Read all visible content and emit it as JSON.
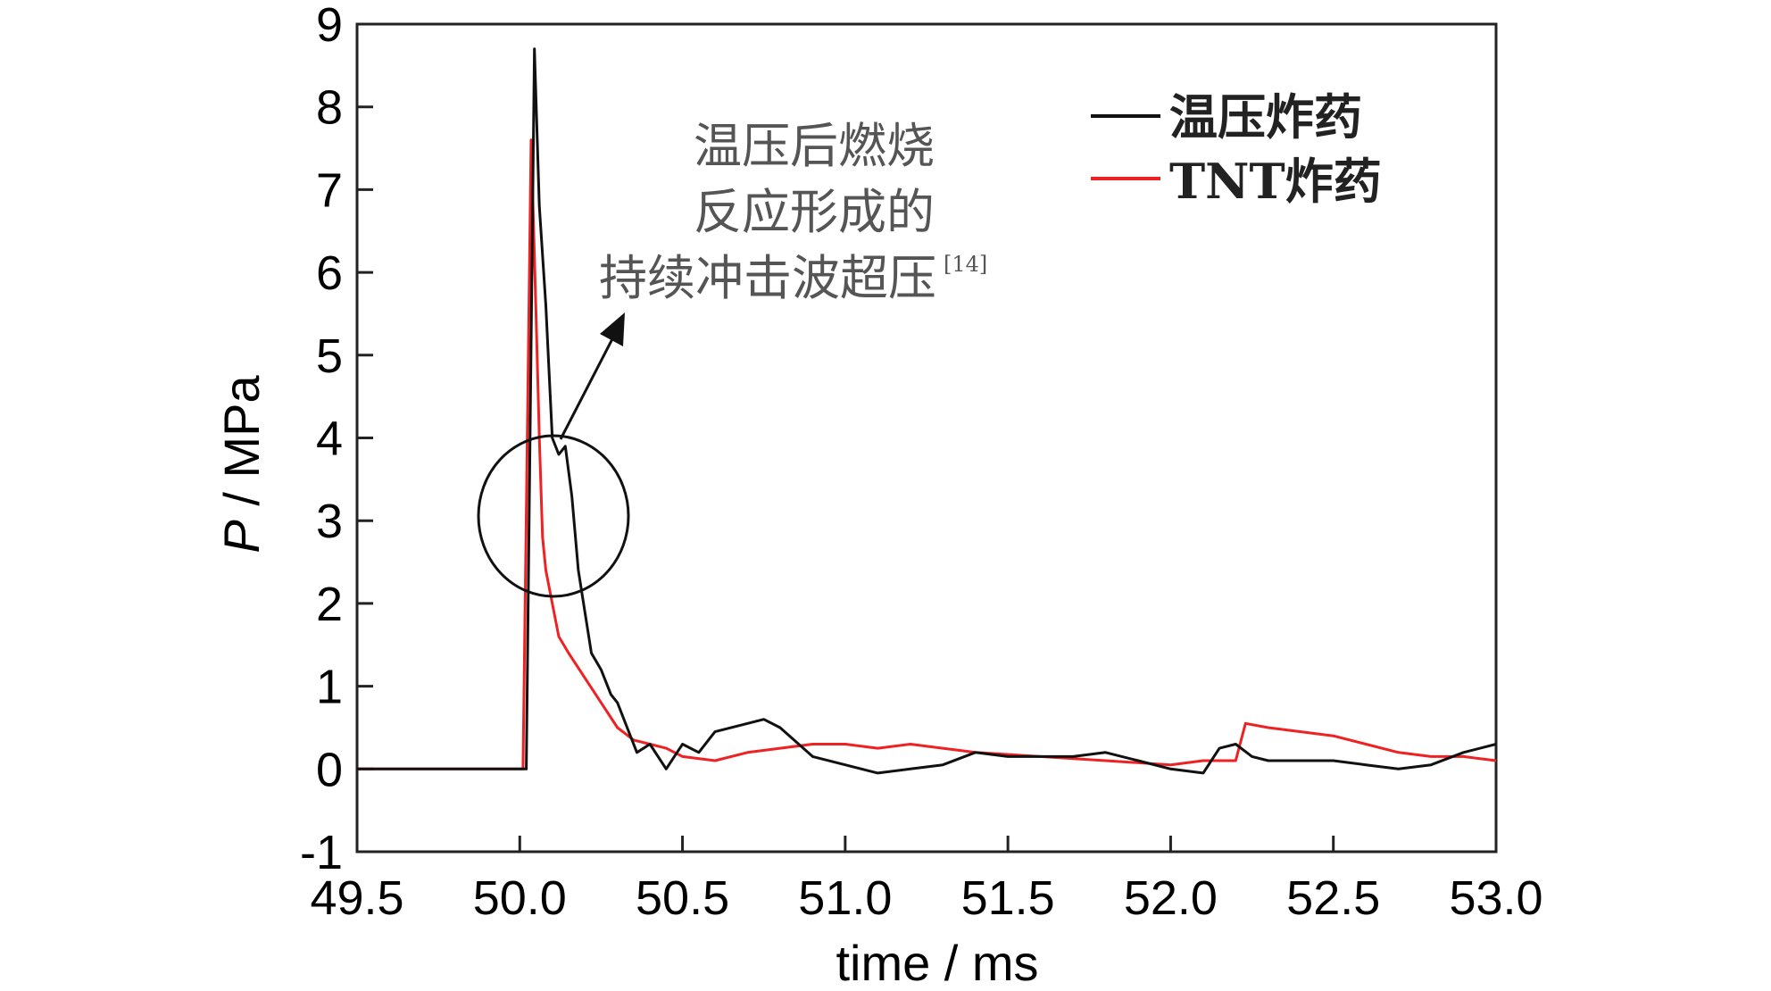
{
  "chart_data": {
    "type": "line",
    "xlabel": "time / ms",
    "ylabel_italic": "P",
    "ylabel_rest": " / MPa",
    "xlim": [
      49.5,
      53.0
    ],
    "ylim": [
      -1,
      9
    ],
    "x_ticks": [
      "49.5",
      "50.0",
      "50.5",
      "51.0",
      "51.5",
      "52.0",
      "52.5",
      "53.0"
    ],
    "y_ticks": [
      "-1",
      "0",
      "1",
      "2",
      "3",
      "4",
      "5",
      "6",
      "7",
      "8",
      "9"
    ],
    "grid": false,
    "legend_position": "top-right",
    "annotation": {
      "lines": [
        "温压后燃烧",
        "反应形成的",
        "持续冲击波超压"
      ],
      "ref": "[14]"
    },
    "series": [
      {
        "name": "温压炸药",
        "color": "#111111",
        "x": [
          49.5,
          50.0,
          50.02,
          50.045,
          50.06,
          50.08,
          50.1,
          50.12,
          50.14,
          50.16,
          50.18,
          50.2,
          50.22,
          50.25,
          50.28,
          50.3,
          50.33,
          50.36,
          50.4,
          50.45,
          50.5,
          50.55,
          50.6,
          50.7,
          50.75,
          50.8,
          50.9,
          51.0,
          51.1,
          51.2,
          51.3,
          51.4,
          51.5,
          51.6,
          51.7,
          51.8,
          51.9,
          52.0,
          52.1,
          52.15,
          52.2,
          52.25,
          52.3,
          52.4,
          52.5,
          52.6,
          52.7,
          52.8,
          52.9,
          53.0
        ],
        "y": [
          0,
          0,
          0,
          8.7,
          6.8,
          5.6,
          4.0,
          3.8,
          3.9,
          3.3,
          2.4,
          1.9,
          1.4,
          1.2,
          0.9,
          0.8,
          0.5,
          0.2,
          0.3,
          0.0,
          0.3,
          0.2,
          0.45,
          0.55,
          0.6,
          0.5,
          0.15,
          0.05,
          -0.05,
          0.0,
          0.05,
          0.2,
          0.15,
          0.15,
          0.15,
          0.2,
          0.1,
          0.0,
          -0.05,
          0.25,
          0.3,
          0.15,
          0.1,
          0.1,
          0.1,
          0.05,
          0.0,
          0.05,
          0.2,
          0.3
        ]
      },
      {
        "name": "TNT炸药",
        "color": "#ee2222",
        "x": [
          49.5,
          49.99,
          50.01,
          50.035,
          50.05,
          50.06,
          50.07,
          50.08,
          50.1,
          50.12,
          50.15,
          50.2,
          50.25,
          50.3,
          50.35,
          50.4,
          50.45,
          50.5,
          50.6,
          50.7,
          50.8,
          50.9,
          51.0,
          51.1,
          51.2,
          51.3,
          51.4,
          51.6,
          51.8,
          52.0,
          52.1,
          52.2,
          52.23,
          52.3,
          52.4,
          52.5,
          52.6,
          52.7,
          52.8,
          52.9,
          53.0
        ],
        "y": [
          0,
          0,
          0,
          7.6,
          5.5,
          4.0,
          2.8,
          2.4,
          2.0,
          1.6,
          1.4,
          1.1,
          0.8,
          0.5,
          0.35,
          0.3,
          0.25,
          0.15,
          0.1,
          0.2,
          0.25,
          0.3,
          0.3,
          0.25,
          0.3,
          0.25,
          0.2,
          0.15,
          0.1,
          0.05,
          0.1,
          0.1,
          0.55,
          0.5,
          0.45,
          0.4,
          0.3,
          0.2,
          0.15,
          0.15,
          0.1
        ]
      }
    ]
  }
}
